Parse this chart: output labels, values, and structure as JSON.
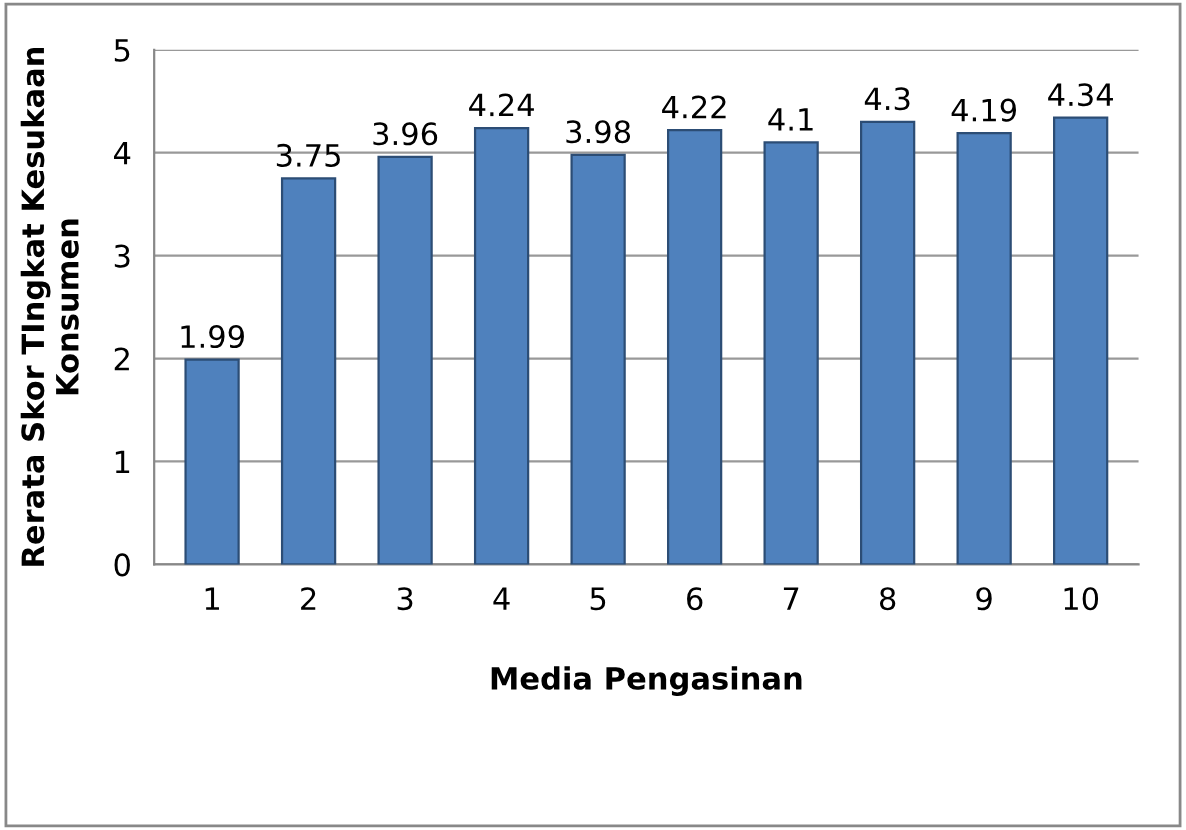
{
  "chart_data": {
    "type": "bar",
    "categories": [
      "1",
      "2",
      "3",
      "4",
      "5",
      "6",
      "7",
      "8",
      "9",
      "10"
    ],
    "values": [
      1.99,
      3.75,
      3.96,
      4.24,
      3.98,
      4.22,
      4.1,
      4.3,
      4.19,
      4.34
    ],
    "color": "#4f81bd",
    "xlabel": "Media Pengasinan",
    "ylabel": "Rerata Skor TIngkat Kesukaan\nKonsumen",
    "ylim": [
      0,
      5
    ],
    "yticks": [
      0,
      1,
      2,
      3,
      4,
      5
    ],
    "grid": "y",
    "data_labels": true
  }
}
